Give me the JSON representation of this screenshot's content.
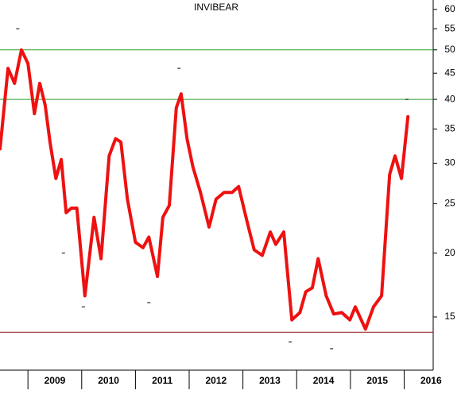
{
  "chart_data": {
    "type": "line",
    "title": "INVIBEAR",
    "log_scale": true,
    "xlim": [
      2008.48,
      2016.54
    ],
    "ylim": [
      11.8,
      62.6
    ],
    "yticks": [
      15,
      20,
      25,
      30,
      35,
      40,
      45,
      50,
      55,
      60
    ],
    "xticks": [
      {
        "value": 2009,
        "label": "2009"
      },
      {
        "value": 2010,
        "label": "2010"
      },
      {
        "value": 2011,
        "label": "2011"
      },
      {
        "value": 2012,
        "label": "2012"
      },
      {
        "value": 2013,
        "label": "2013"
      },
      {
        "value": 2014,
        "label": "2014"
      },
      {
        "value": 2015,
        "label": "2015"
      },
      {
        "value": 2016,
        "label": "2016"
      }
    ],
    "reference_lines": [
      {
        "value": 50,
        "color": "#2e9e2e"
      },
      {
        "value": 40,
        "color": "#2e9e2e"
      },
      {
        "value": 14,
        "color": "#8b1a1a"
      }
    ],
    "x": [
      2008.48,
      2008.63,
      2008.75,
      2008.88,
      2009.0,
      2009.12,
      2009.22,
      2009.32,
      2009.41,
      2009.52,
      2009.62,
      2009.71,
      2009.81,
      2009.91,
      2010.06,
      2010.23,
      2010.36,
      2010.51,
      2010.63,
      2010.73,
      2010.85,
      2011.0,
      2011.14,
      2011.25,
      2011.41,
      2011.51,
      2011.63,
      2011.76,
      2011.85,
      2011.96,
      2012.07,
      2012.21,
      2012.37,
      2012.5,
      2012.65,
      2012.8,
      2012.92,
      2013.07,
      2013.21,
      2013.36,
      2013.51,
      2013.61,
      2013.76,
      2013.91,
      2014.06,
      2014.17,
      2014.29,
      2014.4,
      2014.55,
      2014.69,
      2014.84,
      2014.99,
      2015.09,
      2015.28,
      2015.43,
      2015.58,
      2015.73,
      2015.83,
      2015.95,
      2016.07
    ],
    "series": [
      {
        "color": "#ee1111",
        "values": [
          32,
          46,
          43,
          50,
          47,
          37.5,
          43,
          39,
          33,
          28,
          30.5,
          24,
          24.5,
          24.5,
          16.5,
          23.5,
          19.5,
          31,
          33.5,
          33,
          25.5,
          21,
          20.5,
          21.5,
          18,
          23.5,
          24.8,
          38.5,
          41,
          33.5,
          29.5,
          26.3,
          22.5,
          25.5,
          26.3,
          26.3,
          27,
          23.2,
          20.3,
          19.8,
          22,
          20.8,
          22,
          14.8,
          15.3,
          16.8,
          17.1,
          19.5,
          16.5,
          15.2,
          15.3,
          14.8,
          15.7,
          14.2,
          15.7,
          16.5,
          28.5,
          31,
          28,
          37
        ]
      }
    ],
    "points": {
      "color": "#000000",
      "x": [
        2008.81,
        2009.66,
        2010.03,
        2011.25,
        2011.81,
        2013.88,
        2014.65,
        2016.05
      ],
      "values": [
        55,
        20,
        15.7,
        16,
        46,
        13.4,
        13,
        40
      ]
    }
  }
}
